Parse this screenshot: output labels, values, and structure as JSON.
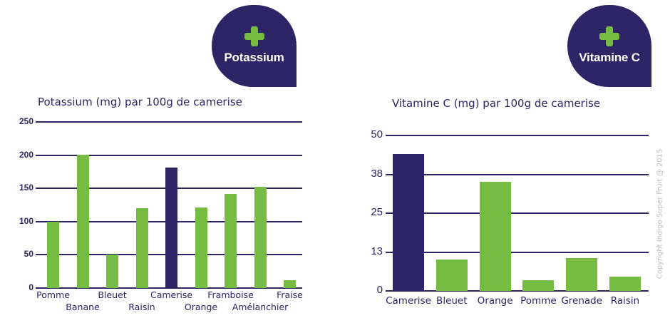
{
  "badges": {
    "potassium": {
      "label": "Potassium",
      "icon": "plus-icon"
    },
    "vitamin_c": {
      "label": "Vitamine C",
      "icon": "plus-icon"
    }
  },
  "colors": {
    "navy": "#2d2566",
    "green": "#76bc43",
    "copyright_gray": "#bdbdbd"
  },
  "copyright": "Copyright Indigo Super Fruit @ 2015",
  "chart_data": [
    {
      "type": "bar",
      "title": "Potassium (mg) par 100g de camerise",
      "xlabel": "",
      "ylabel": "",
      "ylim": [
        0,
        250
      ],
      "yticks": [
        "0",
        "50",
        "100",
        "150",
        "200",
        "250"
      ],
      "grid": true,
      "legend": null,
      "categories": [
        "Pomme",
        "Banane",
        "Bleuet",
        "Raisin",
        "Camerise",
        "Orange",
        "Framboise",
        "Amélanchier",
        "Fraise"
      ],
      "values": [
        100,
        201,
        50,
        120,
        181,
        121,
        142,
        152,
        12
      ],
      "highlight": "Camerise"
    },
    {
      "type": "bar",
      "title": "Vitamine C (mg) par 100g de camerise",
      "xlabel": "",
      "ylabel": "",
      "ylim": [
        0,
        50
      ],
      "yticks": [
        "0",
        "13",
        "25",
        "38",
        "50"
      ],
      "grid": true,
      "legend": null,
      "categories": [
        "Camerise",
        "Bleuet",
        "Orange",
        "Pomme",
        "Grenade",
        "Raisin"
      ],
      "values": [
        44,
        10,
        35,
        3.5,
        10.5,
        4.5
      ],
      "highlight": "Camerise"
    }
  ]
}
